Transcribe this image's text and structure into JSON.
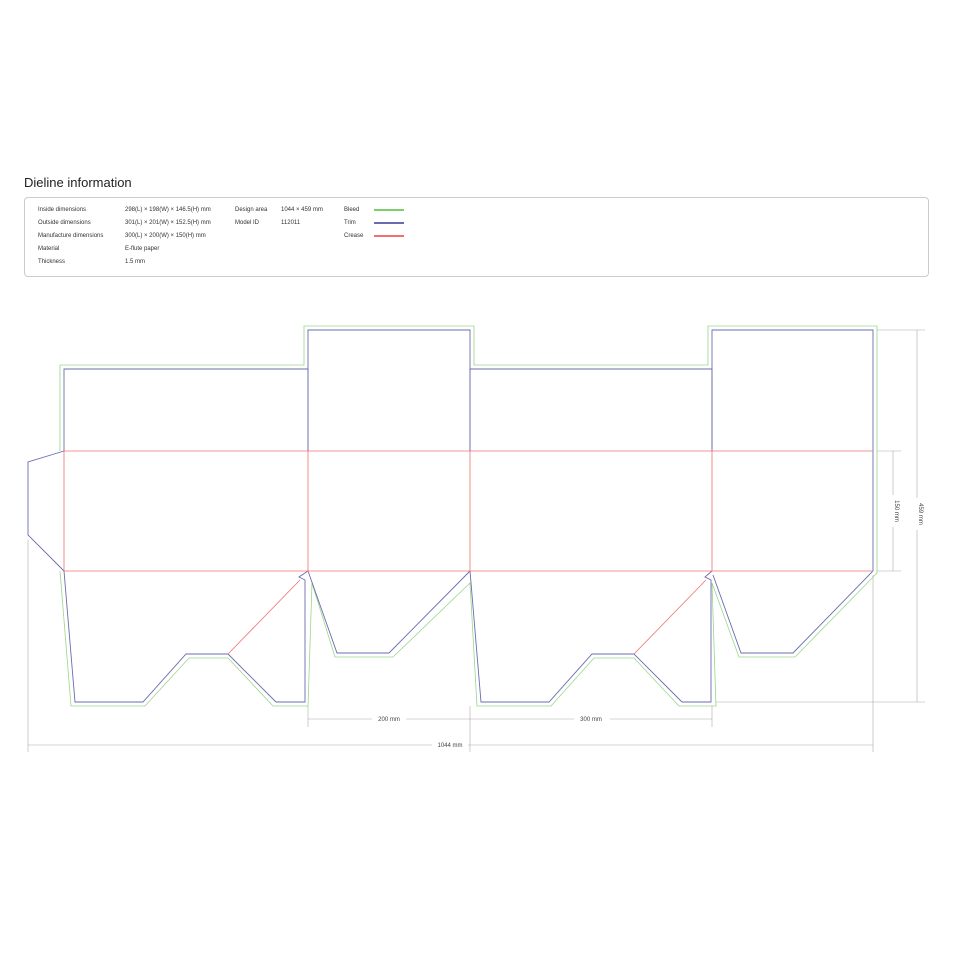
{
  "title": "Dieline information",
  "info": {
    "rows": [
      {
        "label": "Inside dimensions",
        "value": "298(L) × 198(W) × 146.5(H) mm"
      },
      {
        "label": "Outside dimensions",
        "value": "301(L) × 201(W) × 152.5(H) mm"
      },
      {
        "label": "Manufacture dimensions",
        "value": "300(L) × 200(W) × 150(H) mm"
      },
      {
        "label": "Material",
        "value": "E-flute paper"
      },
      {
        "label": "Thickness",
        "value": "1.5 mm"
      }
    ],
    "design_area_label": "Design area",
    "design_area": "1044 × 459 mm",
    "model_id_label": "Model ID",
    "model_id": "112011",
    "legend": [
      {
        "label": "Bleed",
        "color": "#7ccf6a"
      },
      {
        "label": "Trim",
        "color": "#6b6bb0"
      },
      {
        "label": "Crease",
        "color": "#f07070"
      }
    ]
  },
  "dimensions": {
    "width_200": "200 mm",
    "width_300": "300 mm",
    "total_width": "1044 mm",
    "height_150": "150 mm",
    "total_height": "459 mm"
  }
}
